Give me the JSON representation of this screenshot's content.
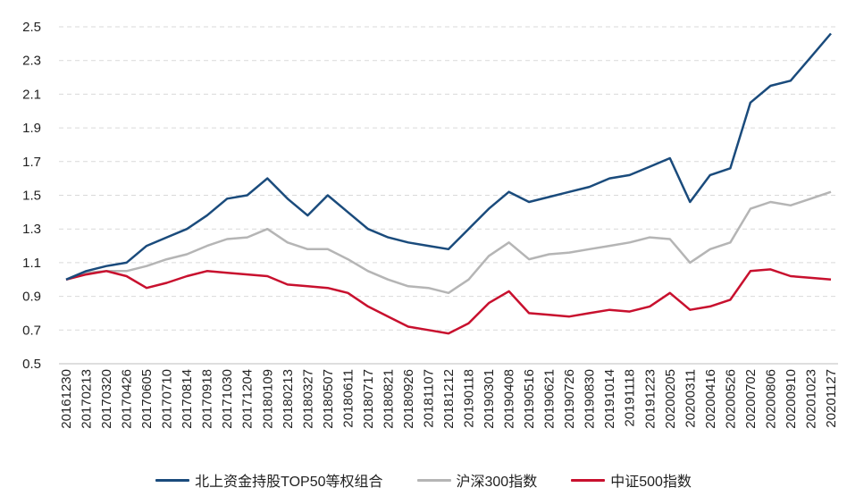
{
  "chart_data": {
    "type": "line",
    "title": "",
    "xlabel": "",
    "ylabel": "",
    "ylim": [
      0.5,
      2.5
    ],
    "yticks": [
      "2.5",
      "2.3",
      "2.1",
      "1.9",
      "1.7",
      "1.5",
      "1.3",
      "1.1",
      "0.9",
      "0.7",
      "0.5"
    ],
    "ytick_values": [
      2.5,
      2.3,
      2.1,
      1.9,
      1.7,
      1.5,
      1.3,
      1.1,
      0.9,
      0.7,
      0.5
    ],
    "grid": true,
    "legend_position": "bottom",
    "x": [
      "20161230",
      "20170213",
      "20170320",
      "20170426",
      "20170605",
      "20170710",
      "20170814",
      "20170918",
      "20171030",
      "20171204",
      "20180109",
      "20180213",
      "20180327",
      "20180507",
      "20180611",
      "20180717",
      "20180821",
      "20180926",
      "20181107",
      "20181212",
      "20190118",
      "20190301",
      "20190408",
      "20190516",
      "20190621",
      "20190726",
      "20190830",
      "20191014",
      "20191118",
      "20191223",
      "20200205",
      "20200311",
      "20200416",
      "20200526",
      "20200702",
      "20200806",
      "20200910",
      "20201023",
      "20201127"
    ],
    "series": [
      {
        "name": "北上资金持股TOP50等权组合",
        "color": "#1a4b7c",
        "values": [
          1.0,
          1.05,
          1.08,
          1.1,
          1.2,
          1.25,
          1.3,
          1.38,
          1.48,
          1.5,
          1.6,
          1.48,
          1.38,
          1.5,
          1.4,
          1.3,
          1.25,
          1.22,
          1.2,
          1.18,
          1.3,
          1.42,
          1.52,
          1.46,
          1.49,
          1.52,
          1.55,
          1.6,
          1.62,
          1.67,
          1.72,
          1.46,
          1.62,
          1.66,
          2.05,
          2.15,
          2.18,
          2.32,
          2.46
        ]
      },
      {
        "name": "沪深300指数",
        "color": "#b5b5b5",
        "values": [
          1.0,
          1.04,
          1.05,
          1.05,
          1.08,
          1.12,
          1.15,
          1.2,
          1.24,
          1.25,
          1.3,
          1.22,
          1.18,
          1.18,
          1.12,
          1.05,
          1.0,
          0.96,
          0.95,
          0.92,
          1.0,
          1.14,
          1.22,
          1.12,
          1.15,
          1.16,
          1.18,
          1.2,
          1.22,
          1.25,
          1.24,
          1.1,
          1.18,
          1.22,
          1.42,
          1.46,
          1.44,
          1.48,
          1.52
        ]
      },
      {
        "name": "中证500指数",
        "color": "#c8102e",
        "values": [
          1.0,
          1.03,
          1.05,
          1.02,
          0.95,
          0.98,
          1.02,
          1.05,
          1.04,
          1.03,
          1.02,
          0.97,
          0.96,
          0.95,
          0.92,
          0.84,
          0.78,
          0.72,
          0.7,
          0.68,
          0.74,
          0.86,
          0.93,
          0.8,
          0.79,
          0.78,
          0.8,
          0.82,
          0.81,
          0.84,
          0.92,
          0.82,
          0.84,
          0.88,
          1.05,
          1.06,
          1.02,
          1.01,
          1.0
        ]
      }
    ]
  }
}
